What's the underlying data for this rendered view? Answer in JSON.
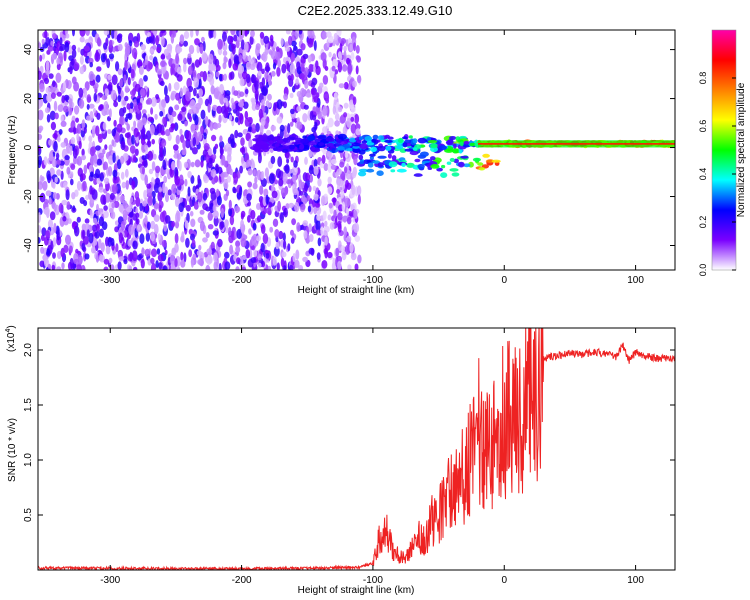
{
  "figure_title": "C2E2.2025.333.12.49.G10",
  "chart_data": [
    {
      "type": "heatmap",
      "title": "C2E2.2025.333.12.49.G10",
      "xlabel": "Height of straight line (km)",
      "ylabel": "Frequency (Hz)",
      "xlim": [
        -355,
        130
      ],
      "ylim": [
        -50,
        48
      ],
      "xticks": [
        -300,
        -200,
        -100,
        0,
        100
      ],
      "xtick_labels": [
        "-300",
        "-200",
        "-100",
        "0",
        "100"
      ],
      "yticks": [
        -40,
        -20,
        0,
        20,
        40
      ],
      "ytick_labels": [
        "-40",
        "-20",
        "0",
        "20",
        "40"
      ],
      "colorbar": {
        "label": "Normalized spectral amplitude",
        "range": [
          0.0,
          1.0
        ],
        "ticks": [
          0.0,
          0.2,
          0.4,
          0.6,
          0.8
        ],
        "tick_labels": [
          "0.0",
          "0.2",
          "0.4",
          "0.6",
          "0.8"
        ],
        "colors": [
          "#ffffff",
          "#7a00ff",
          "#0000ff",
          "#00ffff",
          "#00ff00",
          "#ffff00",
          "#ff8000",
          "#ff0000",
          "#ff00aa"
        ]
      },
      "features": {
        "noise_region_x": [
          -355,
          -120
        ],
        "noise_amplitude": [
          0.0,
          0.2
        ],
        "signal_band_freq_hz": [
          0,
          3
        ],
        "signal_onset_x": -190,
        "strong_signal_x": [
          -20,
          130
        ],
        "strong_signal_amplitude": 0.85
      }
    },
    {
      "type": "line",
      "xlabel": "Height of straight line (km)",
      "ylabel": "SNR (10 * v/v)",
      "y_scale_label": "(x10",
      "y_scale_exponent": "4",
      "xlim": [
        -355,
        130
      ],
      "ylim": [
        0,
        22000
      ],
      "xticks": [
        -300,
        -200,
        -100,
        0,
        100
      ],
      "xtick_labels": [
        "-300",
        "-200",
        "-100",
        "0",
        "100"
      ],
      "yticks": [
        5000,
        10000,
        15000,
        20000
      ],
      "ytick_labels": [
        "0.5",
        "1.0",
        "1.5",
        "2.0"
      ],
      "series": [
        {
          "name": "SNR",
          "color": "#ee2222",
          "x": [
            -355,
            -300,
            -250,
            -200,
            -150,
            -110,
            -100,
            -95,
            -90,
            -85,
            -80,
            -75,
            -70,
            -65,
            -60,
            -55,
            -50,
            -45,
            -40,
            -35,
            -30,
            -25,
            -20,
            -15,
            -10,
            -5,
            0,
            5,
            10,
            15,
            20,
            25,
            30,
            40,
            50,
            60,
            70,
            80,
            85,
            90,
            95,
            100,
            110,
            120,
            130
          ],
          "values": [
            200,
            150,
            120,
            110,
            150,
            250,
            600,
            2800,
            3500,
            1800,
            1300,
            1000,
            2200,
            3200,
            2800,
            4500,
            5200,
            6000,
            7500,
            7200,
            9000,
            11000,
            12500,
            12000,
            11000,
            12500,
            14500,
            13500,
            13000,
            14000,
            16500,
            17800,
            19200,
            19500,
            19700,
            19600,
            19800,
            19600,
            19300,
            20500,
            19000,
            19800,
            19400,
            19200,
            19200
          ]
        }
      ]
    }
  ]
}
